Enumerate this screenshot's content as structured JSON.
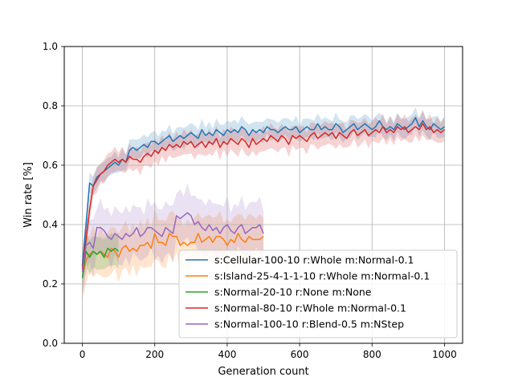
{
  "chart_data": {
    "type": "line",
    "title": "",
    "xlabel": "Generation count",
    "ylabel": "Win rate [%]",
    "xlim": [
      -50,
      1050
    ],
    "ylim": [
      0.0,
      1.0
    ],
    "xticks": [
      0,
      200,
      400,
      600,
      800,
      1000
    ],
    "yticks": [
      0.0,
      0.2,
      0.4,
      0.6,
      0.8,
      1.0
    ],
    "xtick_labels": [
      "0",
      "200",
      "400",
      "600",
      "800",
      "1000"
    ],
    "ytick_labels": [
      "0.0",
      "0.2",
      "0.4",
      "0.6",
      "0.8",
      "1.0"
    ],
    "grid": true,
    "legend_position": "lower-right",
    "series": [
      {
        "name": "s:Cellular-100-10 r:Whole m:Normal-0.1",
        "color": "#1f77b4",
        "band": 0.03,
        "points": [
          [
            0,
            0.26
          ],
          [
            10,
            0.4
          ],
          [
            20,
            0.54
          ],
          [
            30,
            0.53
          ],
          [
            40,
            0.56
          ],
          [
            50,
            0.57
          ],
          [
            60,
            0.58
          ],
          [
            70,
            0.59
          ],
          [
            80,
            0.6
          ],
          [
            90,
            0.61
          ],
          [
            100,
            0.6
          ],
          [
            110,
            0.62
          ],
          [
            120,
            0.61
          ],
          [
            130,
            0.65
          ],
          [
            140,
            0.66
          ],
          [
            150,
            0.65
          ],
          [
            160,
            0.66
          ],
          [
            170,
            0.67
          ],
          [
            180,
            0.66
          ],
          [
            190,
            0.68
          ],
          [
            200,
            0.68
          ],
          [
            210,
            0.67
          ],
          [
            220,
            0.68
          ],
          [
            230,
            0.69
          ],
          [
            240,
            0.7
          ],
          [
            250,
            0.68
          ],
          [
            260,
            0.69
          ],
          [
            270,
            0.7
          ],
          [
            280,
            0.69
          ],
          [
            290,
            0.7
          ],
          [
            300,
            0.71
          ],
          [
            310,
            0.7
          ],
          [
            320,
            0.69
          ],
          [
            330,
            0.72
          ],
          [
            340,
            0.7
          ],
          [
            350,
            0.71
          ],
          [
            360,
            0.7
          ],
          [
            370,
            0.72
          ],
          [
            380,
            0.71
          ],
          [
            390,
            0.7
          ],
          [
            400,
            0.72
          ],
          [
            410,
            0.71
          ],
          [
            420,
            0.72
          ],
          [
            430,
            0.71
          ],
          [
            440,
            0.73
          ],
          [
            450,
            0.72
          ],
          [
            460,
            0.7
          ],
          [
            470,
            0.72
          ],
          [
            480,
            0.71
          ],
          [
            490,
            0.72
          ],
          [
            500,
            0.71
          ],
          [
            510,
            0.73
          ],
          [
            520,
            0.72
          ],
          [
            530,
            0.72
          ],
          [
            540,
            0.71
          ],
          [
            550,
            0.72
          ],
          [
            560,
            0.73
          ],
          [
            570,
            0.72
          ],
          [
            580,
            0.72
          ],
          [
            590,
            0.73
          ],
          [
            600,
            0.71
          ],
          [
            610,
            0.72
          ],
          [
            620,
            0.73
          ],
          [
            630,
            0.72
          ],
          [
            640,
            0.72
          ],
          [
            650,
            0.74
          ],
          [
            660,
            0.72
          ],
          [
            670,
            0.73
          ],
          [
            680,
            0.72
          ],
          [
            690,
            0.72
          ],
          [
            700,
            0.74
          ],
          [
            710,
            0.73
          ],
          [
            720,
            0.71
          ],
          [
            730,
            0.72
          ],
          [
            740,
            0.73
          ],
          [
            750,
            0.74
          ],
          [
            760,
            0.72
          ],
          [
            770,
            0.73
          ],
          [
            780,
            0.74
          ],
          [
            790,
            0.73
          ],
          [
            800,
            0.72
          ],
          [
            810,
            0.73
          ],
          [
            820,
            0.75
          ],
          [
            830,
            0.73
          ],
          [
            840,
            0.72
          ],
          [
            850,
            0.73
          ],
          [
            860,
            0.72
          ],
          [
            870,
            0.74
          ],
          [
            880,
            0.73
          ],
          [
            890,
            0.72
          ],
          [
            900,
            0.73
          ],
          [
            910,
            0.74
          ],
          [
            920,
            0.76
          ],
          [
            930,
            0.73
          ],
          [
            940,
            0.75
          ],
          [
            950,
            0.73
          ],
          [
            960,
            0.72
          ],
          [
            970,
            0.74
          ],
          [
            980,
            0.73
          ],
          [
            990,
            0.72
          ],
          [
            1000,
            0.73
          ]
        ]
      },
      {
        "name": "s:Island-25-4-1-1-10 r:Whole m:Normal-0.1",
        "color": "#ff7f0e",
        "band": 0.07,
        "points": [
          [
            0,
            0.22
          ],
          [
            10,
            0.28
          ],
          [
            20,
            0.3
          ],
          [
            30,
            0.31
          ],
          [
            40,
            0.3
          ],
          [
            50,
            0.31
          ],
          [
            60,
            0.3
          ],
          [
            70,
            0.29
          ],
          [
            80,
            0.32
          ],
          [
            90,
            0.31
          ],
          [
            100,
            0.29
          ],
          [
            110,
            0.32
          ],
          [
            120,
            0.33
          ],
          [
            130,
            0.31
          ],
          [
            140,
            0.32
          ],
          [
            150,
            0.31
          ],
          [
            160,
            0.33
          ],
          [
            170,
            0.33
          ],
          [
            180,
            0.34
          ],
          [
            190,
            0.32
          ],
          [
            200,
            0.37
          ],
          [
            210,
            0.34
          ],
          [
            220,
            0.34
          ],
          [
            230,
            0.33
          ],
          [
            240,
            0.37
          ],
          [
            250,
            0.36
          ],
          [
            260,
            0.36
          ],
          [
            270,
            0.33
          ],
          [
            280,
            0.34
          ],
          [
            290,
            0.33
          ],
          [
            300,
            0.34
          ],
          [
            310,
            0.34
          ],
          [
            320,
            0.37
          ],
          [
            330,
            0.34
          ],
          [
            340,
            0.35
          ],
          [
            350,
            0.36
          ],
          [
            360,
            0.34
          ],
          [
            370,
            0.36
          ],
          [
            380,
            0.36
          ],
          [
            390,
            0.35
          ],
          [
            400,
            0.33
          ],
          [
            410,
            0.35
          ],
          [
            420,
            0.34
          ],
          [
            430,
            0.37
          ],
          [
            440,
            0.35
          ],
          [
            450,
            0.34
          ],
          [
            460,
            0.36
          ],
          [
            470,
            0.35
          ],
          [
            480,
            0.35
          ],
          [
            490,
            0.35
          ],
          [
            500,
            0.36
          ]
        ]
      },
      {
        "name": "s:Normal-20-10 r:None m:None",
        "color": "#2ca02c",
        "band": 0.05,
        "points": [
          [
            0,
            0.22
          ],
          [
            10,
            0.31
          ],
          [
            20,
            0.29
          ],
          [
            30,
            0.31
          ],
          [
            40,
            0.3
          ],
          [
            50,
            0.31
          ],
          [
            60,
            0.29
          ],
          [
            70,
            0.32
          ],
          [
            80,
            0.31
          ],
          [
            90,
            0.32
          ],
          [
            100,
            0.31
          ]
        ]
      },
      {
        "name": "s:Normal-80-10 r:Whole m:Normal-0.1",
        "color": "#d62728",
        "band": 0.035,
        "points": [
          [
            0,
            0.25
          ],
          [
            10,
            0.35
          ],
          [
            20,
            0.45
          ],
          [
            30,
            0.53
          ],
          [
            40,
            0.55
          ],
          [
            50,
            0.57
          ],
          [
            60,
            0.58
          ],
          [
            70,
            0.6
          ],
          [
            80,
            0.61
          ],
          [
            90,
            0.62
          ],
          [
            100,
            0.61
          ],
          [
            110,
            0.62
          ],
          [
            120,
            0.61
          ],
          [
            130,
            0.63
          ],
          [
            140,
            0.62
          ],
          [
            150,
            0.62
          ],
          [
            160,
            0.61
          ],
          [
            170,
            0.63
          ],
          [
            180,
            0.64
          ],
          [
            190,
            0.63
          ],
          [
            200,
            0.65
          ],
          [
            210,
            0.64
          ],
          [
            220,
            0.66
          ],
          [
            230,
            0.65
          ],
          [
            240,
            0.67
          ],
          [
            250,
            0.66
          ],
          [
            260,
            0.67
          ],
          [
            270,
            0.66
          ],
          [
            280,
            0.68
          ],
          [
            290,
            0.67
          ],
          [
            300,
            0.68
          ],
          [
            310,
            0.66
          ],
          [
            320,
            0.67
          ],
          [
            330,
            0.68
          ],
          [
            340,
            0.66
          ],
          [
            350,
            0.68
          ],
          [
            360,
            0.67
          ],
          [
            370,
            0.69
          ],
          [
            380,
            0.66
          ],
          [
            390,
            0.68
          ],
          [
            400,
            0.67
          ],
          [
            410,
            0.69
          ],
          [
            420,
            0.68
          ],
          [
            430,
            0.67
          ],
          [
            440,
            0.69
          ],
          [
            450,
            0.68
          ],
          [
            460,
            0.66
          ],
          [
            470,
            0.69
          ],
          [
            480,
            0.67
          ],
          [
            490,
            0.68
          ],
          [
            500,
            0.69
          ],
          [
            510,
            0.68
          ],
          [
            520,
            0.7
          ],
          [
            530,
            0.69
          ],
          [
            540,
            0.68
          ],
          [
            550,
            0.7
          ],
          [
            560,
            0.69
          ],
          [
            570,
            0.67
          ],
          [
            580,
            0.7
          ],
          [
            590,
            0.69
          ],
          [
            600,
            0.7
          ],
          [
            610,
            0.69
          ],
          [
            620,
            0.68
          ],
          [
            630,
            0.7
          ],
          [
            640,
            0.71
          ],
          [
            650,
            0.69
          ],
          [
            660,
            0.7
          ],
          [
            670,
            0.71
          ],
          [
            680,
            0.7
          ],
          [
            690,
            0.71
          ],
          [
            700,
            0.69
          ],
          [
            710,
            0.71
          ],
          [
            720,
            0.7
          ],
          [
            730,
            0.69
          ],
          [
            740,
            0.71
          ],
          [
            750,
            0.72
          ],
          [
            760,
            0.7
          ],
          [
            770,
            0.71
          ],
          [
            780,
            0.72
          ],
          [
            790,
            0.7
          ],
          [
            800,
            0.71
          ],
          [
            810,
            0.72
          ],
          [
            820,
            0.71
          ],
          [
            830,
            0.73
          ],
          [
            840,
            0.71
          ],
          [
            850,
            0.72
          ],
          [
            860,
            0.71
          ],
          [
            870,
            0.73
          ],
          [
            880,
            0.72
          ],
          [
            890,
            0.73
          ],
          [
            900,
            0.71
          ],
          [
            910,
            0.72
          ],
          [
            920,
            0.73
          ],
          [
            930,
            0.72
          ],
          [
            940,
            0.74
          ],
          [
            950,
            0.72
          ],
          [
            960,
            0.73
          ],
          [
            970,
            0.71
          ],
          [
            980,
            0.72
          ],
          [
            990,
            0.71
          ],
          [
            1000,
            0.72
          ]
        ]
      },
      {
        "name": "s:Normal-100-10 r:Blend-0.5 m:NStep",
        "color": "#9467bd",
        "band": 0.08,
        "points": [
          [
            0,
            0.24
          ],
          [
            10,
            0.33
          ],
          [
            20,
            0.34
          ],
          [
            30,
            0.32
          ],
          [
            40,
            0.39
          ],
          [
            50,
            0.39
          ],
          [
            60,
            0.38
          ],
          [
            70,
            0.36
          ],
          [
            80,
            0.35
          ],
          [
            90,
            0.37
          ],
          [
            100,
            0.36
          ],
          [
            110,
            0.35
          ],
          [
            120,
            0.37
          ],
          [
            130,
            0.36
          ],
          [
            140,
            0.37
          ],
          [
            150,
            0.39
          ],
          [
            160,
            0.36
          ],
          [
            170,
            0.37
          ],
          [
            180,
            0.39
          ],
          [
            190,
            0.39
          ],
          [
            200,
            0.38
          ],
          [
            210,
            0.37
          ],
          [
            220,
            0.36
          ],
          [
            230,
            0.39
          ],
          [
            240,
            0.38
          ],
          [
            250,
            0.37
          ],
          [
            260,
            0.43
          ],
          [
            270,
            0.42
          ],
          [
            280,
            0.43
          ],
          [
            290,
            0.44
          ],
          [
            300,
            0.43
          ],
          [
            310,
            0.4
          ],
          [
            320,
            0.41
          ],
          [
            330,
            0.39
          ],
          [
            340,
            0.38
          ],
          [
            350,
            0.4
          ],
          [
            360,
            0.38
          ],
          [
            370,
            0.39
          ],
          [
            380,
            0.37
          ],
          [
            390,
            0.39
          ],
          [
            400,
            0.4
          ],
          [
            410,
            0.38
          ],
          [
            420,
            0.37
          ],
          [
            430,
            0.39
          ],
          [
            440,
            0.4
          ],
          [
            450,
            0.37
          ],
          [
            460,
            0.38
          ],
          [
            470,
            0.39
          ],
          [
            480,
            0.39
          ],
          [
            490,
            0.4
          ],
          [
            500,
            0.37
          ]
        ]
      }
    ]
  }
}
